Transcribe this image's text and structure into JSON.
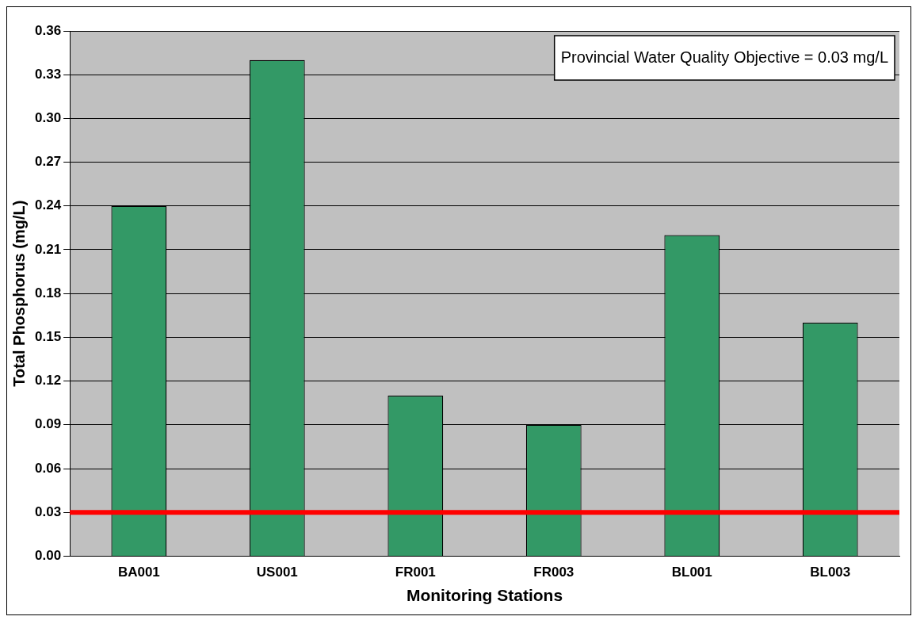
{
  "chart_data": {
    "type": "bar",
    "xlabel": "Monitoring Stations",
    "ylabel": "Total Phosphorus (mg/L)",
    "categories": [
      "BA001",
      "US001",
      "FR001",
      "FR003",
      "BL001",
      "BL003"
    ],
    "values": [
      0.24,
      0.34,
      0.11,
      0.09,
      0.22,
      0.16
    ],
    "color": "#339966",
    "ylim": [
      0,
      0.36
    ],
    "yticks": [
      {
        "value": 0,
        "label": "0.00"
      },
      {
        "value": 0.03,
        "label": "0.03"
      },
      {
        "value": 0.06,
        "label": "0.06"
      },
      {
        "value": 0.09,
        "label": "0.09"
      },
      {
        "value": 0.12,
        "label": "0.12"
      },
      {
        "value": 0.15,
        "label": "0.15"
      },
      {
        "value": 0.18,
        "label": "0.18"
      },
      {
        "value": 0.21,
        "label": "0.21"
      },
      {
        "value": 0.24,
        "label": "0.24"
      },
      {
        "value": 0.27,
        "label": "0.27"
      },
      {
        "value": 0.3,
        "label": "0.30"
      },
      {
        "value": 0.33,
        "label": "0.33"
      },
      {
        "value": 0.36,
        "label": "0.36"
      }
    ],
    "grid": "y",
    "legend": false,
    "annotations": [
      "Provincial Water Quality Objective = 0.03 mg/L"
    ],
    "ref_lines": [
      {
        "axis": "y",
        "value": 0.03,
        "color": "#ff0000"
      }
    ]
  }
}
